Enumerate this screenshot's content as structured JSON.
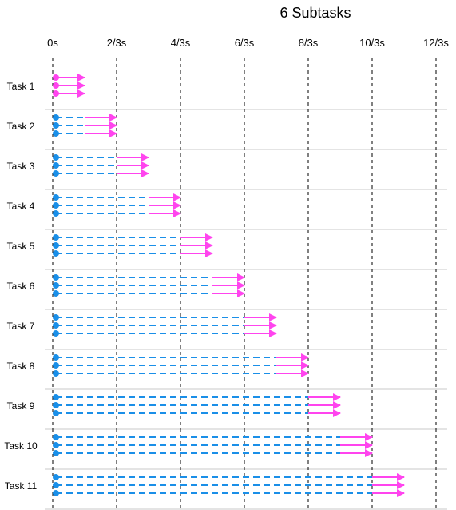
{
  "title": "6 Subtasks",
  "chart_data": {
    "type": "timeline",
    "title": "6 Subtasks",
    "time_unit": "s",
    "x_ticks": [
      "0s",
      "2/3s",
      "4/3s",
      "6/3s",
      "8/3s",
      "10/3s",
      "12/3s"
    ],
    "x_range": [
      0,
      4
    ],
    "subtasks_per_task": 3,
    "subtask_duration": 0.3333,
    "grid": "vertical dashed at each tick",
    "tasks": [
      {
        "label": "Task 1",
        "start": 0,
        "wait_until": 0.0,
        "end": 0.3333
      },
      {
        "label": "Task 2",
        "start": 0,
        "wait_until": 0.3333,
        "end": 0.6667
      },
      {
        "label": "Task 3",
        "start": 0,
        "wait_until": 0.6667,
        "end": 1.0
      },
      {
        "label": "Task 4",
        "start": 0,
        "wait_until": 1.0,
        "end": 1.3333
      },
      {
        "label": "Task 5",
        "start": 0,
        "wait_until": 1.3333,
        "end": 1.6667
      },
      {
        "label": "Task 6",
        "start": 0,
        "wait_until": 1.6667,
        "end": 2.0
      },
      {
        "label": "Task 7",
        "start": 0,
        "wait_until": 2.0,
        "end": 2.3333
      },
      {
        "label": "Task 8",
        "start": 0,
        "wait_until": 2.3333,
        "end": 2.6667
      },
      {
        "label": "Task 9",
        "start": 0,
        "wait_until": 2.6667,
        "end": 3.0
      },
      {
        "label": "Task 10",
        "start": 0,
        "wait_until": 3.0,
        "end": 3.3333
      },
      {
        "label": "Task 11",
        "start": 0,
        "wait_until": 3.3333,
        "end": 3.6667
      }
    ]
  },
  "colors": {
    "waiting": "#1a8fe8",
    "running": "#ff44ee",
    "grid": "#000000",
    "separator": "#c8c8c8"
  }
}
